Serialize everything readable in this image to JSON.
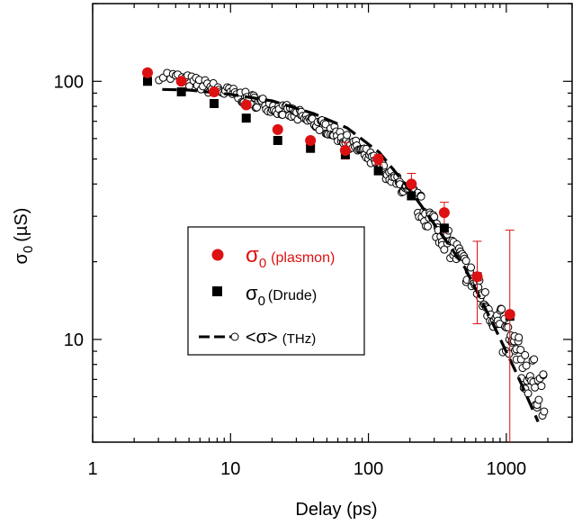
{
  "chart_data": {
    "type": "scatter",
    "xscale": "log",
    "yscale": "log",
    "xlim": [
      1,
      3000
    ],
    "ylim": [
      4,
      200
    ],
    "xlabel": "Delay (ps)",
    "ylabel": {
      "main": "σ",
      "sub": "0",
      "unit": "(µS)"
    },
    "xticks": [
      {
        "v": 1,
        "label": "1"
      },
      {
        "v": 10,
        "label": "10"
      },
      {
        "v": 100,
        "label": "100"
      },
      {
        "v": 1000,
        "label": "1000"
      }
    ],
    "yticks": [
      {
        "v": 10,
        "label": "10"
      },
      {
        "v": 100,
        "label": "100"
      }
    ],
    "grid": false,
    "legend": {
      "placement": "center-left",
      "entries": [
        {
          "symbol": "σ",
          "sub": "0",
          "label": "(plasmon)",
          "color": "#dd1111"
        },
        {
          "symbol": "σ",
          "sub": "0",
          "label": "(Drude)",
          "color": "#000000"
        },
        {
          "symbol": "<σ>",
          "sub": "",
          "label": "(THz)",
          "color": "#000000"
        }
      ]
    },
    "series": [
      {
        "name": "σ0 (plasmon)",
        "marker": "filled-circle",
        "color": "#dd1111",
        "points": [
          {
            "x": 2.5,
            "y": 108
          },
          {
            "x": 4.4,
            "y": 100
          },
          {
            "x": 7.6,
            "y": 91
          },
          {
            "x": 13,
            "y": 81
          },
          {
            "x": 22,
            "y": 65
          },
          {
            "x": 38,
            "y": 59
          },
          {
            "x": 68,
            "y": 54,
            "err": [
              50,
              58
            ]
          },
          {
            "x": 118,
            "y": 50,
            "err": [
              47.5,
              52
            ]
          },
          {
            "x": 205,
            "y": 40,
            "err": [
              36,
              44
            ]
          },
          {
            "x": 355,
            "y": 31,
            "err": [
              26,
              34
            ]
          },
          {
            "x": 615,
            "y": 17.5,
            "err": [
              11.5,
              24
            ]
          },
          {
            "x": 1060,
            "y": 12.5,
            "err": [
              2,
              26.5
            ]
          }
        ]
      },
      {
        "name": "σ0 (Drude)",
        "marker": "filled-square",
        "color": "#000000",
        "points": [
          {
            "x": 2.5,
            "y": 100
          },
          {
            "x": 4.4,
            "y": 91
          },
          {
            "x": 7.6,
            "y": 82
          },
          {
            "x": 13,
            "y": 72
          },
          {
            "x": 22,
            "y": 59
          },
          {
            "x": 38,
            "y": 55
          },
          {
            "x": 68,
            "y": 52
          },
          {
            "x": 118,
            "y": 45
          },
          {
            "x": 205,
            "y": 36
          },
          {
            "x": 355,
            "y": 27
          },
          {
            "x": 615,
            "y": 17.5
          },
          {
            "x": 1060,
            "y": 12.3
          }
        ]
      },
      {
        "name": "<σ> (THz)",
        "marker": "open-circle",
        "color": "#000000",
        "curve": [
          [
            3,
            107
          ],
          [
            5,
            100
          ],
          [
            8,
            93
          ],
          [
            12,
            87
          ],
          [
            20,
            80
          ],
          [
            30,
            74
          ],
          [
            50,
            66
          ],
          [
            80,
            56
          ],
          [
            120,
            47
          ],
          [
            200,
            36.5
          ],
          [
            300,
            28
          ],
          [
            450,
            21
          ],
          [
            700,
            14
          ],
          [
            1000,
            10
          ],
          [
            1300,
            8
          ],
          [
            1600,
            6.8
          ],
          [
            1900,
            6
          ]
        ],
        "count": 320
      },
      {
        "name": "<σ> (THz) fit",
        "marker": "dashed-line",
        "color": "#000000",
        "curve": [
          [
            3.2,
            93
          ],
          [
            5,
            92.5
          ],
          [
            10,
            89
          ],
          [
            20,
            84
          ],
          [
            40,
            75
          ],
          [
            70,
            66
          ],
          [
            120,
            53
          ],
          [
            200,
            38
          ],
          [
            300,
            28
          ],
          [
            500,
            19
          ],
          [
            800,
            11.5
          ],
          [
            1200,
            7.3
          ],
          [
            1700,
            4.8
          ]
        ]
      }
    ]
  }
}
